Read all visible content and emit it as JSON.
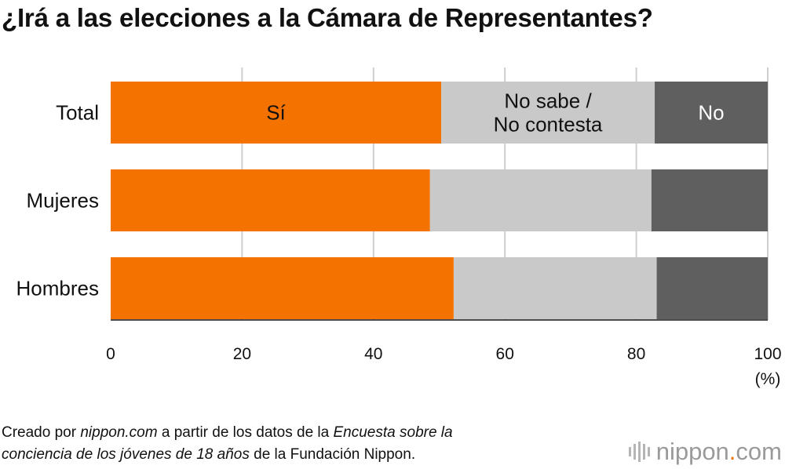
{
  "title": "¿Irá a las elecciones a la Cámara de Representantes?",
  "chart_data": {
    "type": "bar",
    "orientation": "horizontal",
    "stacked": true,
    "categories": [
      "Total",
      "Mujeres",
      "Hombres"
    ],
    "series": [
      {
        "name": "Sí",
        "values": [
          50.3,
          48.6,
          52.2
        ],
        "color": "#f47300"
      },
      {
        "name": "No sabe / No contesta",
        "values": [
          32.5,
          33.7,
          30.9
        ],
        "color": "#c9c9c9"
      },
      {
        "name": "No",
        "values": [
          17.2,
          17.7,
          16.9
        ],
        "color": "#5f5f5f"
      }
    ],
    "inline_labels": [
      {
        "lines": [
          "Sí"
        ],
        "color": "#111111"
      },
      {
        "lines": [
          "No sabe /",
          "No contesta"
        ],
        "color": "#111111"
      },
      {
        "lines": [
          "No"
        ],
        "color": "#ffffff"
      }
    ],
    "xlim": [
      0,
      100
    ],
    "xticks": [
      0,
      20,
      40,
      60,
      80,
      100
    ],
    "xunit": "(%)",
    "grid": true
  },
  "caption": {
    "p1": "Creado por ",
    "p2": "nippon.com",
    "p3": " a partir de los datos de la ",
    "p4": "Encuesta sobre la",
    "p5": "conciencia de los jóvenes de 18 años",
    "p6": " de la Fundación Nippon."
  },
  "brand": {
    "name_a": "nippon",
    "dot": ".",
    "name_b": "com"
  }
}
